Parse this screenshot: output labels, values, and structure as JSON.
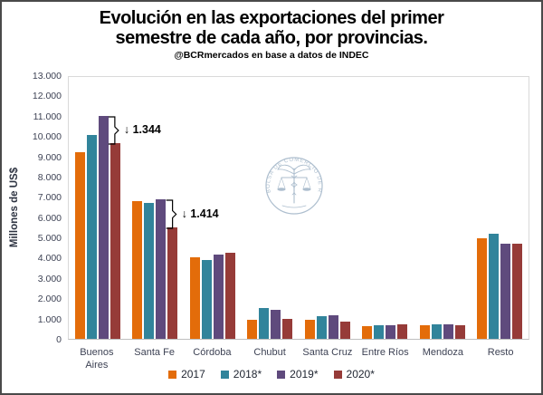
{
  "window": {
    "background": "#ffffff",
    "border_color": "#4a4a4a"
  },
  "title": {
    "lines": [
      "Evolución en las exportaciones del primer",
      "semestre de cada año, por provincias."
    ]
  },
  "subtitle": "@BCRmercados en base a datos de INDEC",
  "watermark": {
    "organization": "BOLSA DE COMERCIO DE ROSARIO",
    "color": "#9fb3c6"
  },
  "chart_data": {
    "type": "bar",
    "title": "Evolución en las exportaciones del primer semestre de cada año, por provincias.",
    "subtitle": "@BCRmercados en base a datos de INDEC",
    "categories": [
      "Buenos Aires",
      "Santa Fe",
      "Córdoba",
      "Chubut",
      "Santa Cruz",
      "Entre Ríos",
      "Mendoza",
      "Resto"
    ],
    "series": [
      {
        "name": "2017",
        "color": "#E36C0A",
        "values": [
          9200,
          6800,
          4000,
          950,
          950,
          620,
          680,
          4950
        ]
      },
      {
        "name": "2018*",
        "color": "#31849B",
        "values": [
          10050,
          6700,
          3900,
          1500,
          1130,
          680,
          700,
          5160
        ]
      },
      {
        "name": "2019*",
        "color": "#5F4A7D",
        "values": [
          11000,
          6900,
          4150,
          1430,
          1180,
          680,
          700,
          4700
        ]
      },
      {
        "name": "2020*",
        "color": "#963B38",
        "values": [
          9656,
          5486,
          4250,
          980,
          850,
          700,
          650,
          4680
        ]
      }
    ],
    "xlabel": "",
    "ylabel": "Millones de US$",
    "ylim": [
      0,
      13000
    ],
    "ytick_labels": [
      "13.000",
      "12.000",
      "11.000",
      "10.000",
      "9.000",
      "8.000",
      "7.000",
      "6.000",
      "5.000",
      "4.000",
      "3.000",
      "2.000",
      "1.000",
      "0"
    ],
    "grid": false,
    "legend_position": "bottom",
    "annotations": [
      {
        "text": "↓ 1.344",
        "category": "Buenos Aires",
        "group": 0,
        "from_series": 2,
        "to_series": 3
      },
      {
        "text": "↓ 1.414",
        "category": "Santa Fe",
        "group": 1,
        "from_series": 2,
        "to_series": 3
      }
    ]
  }
}
